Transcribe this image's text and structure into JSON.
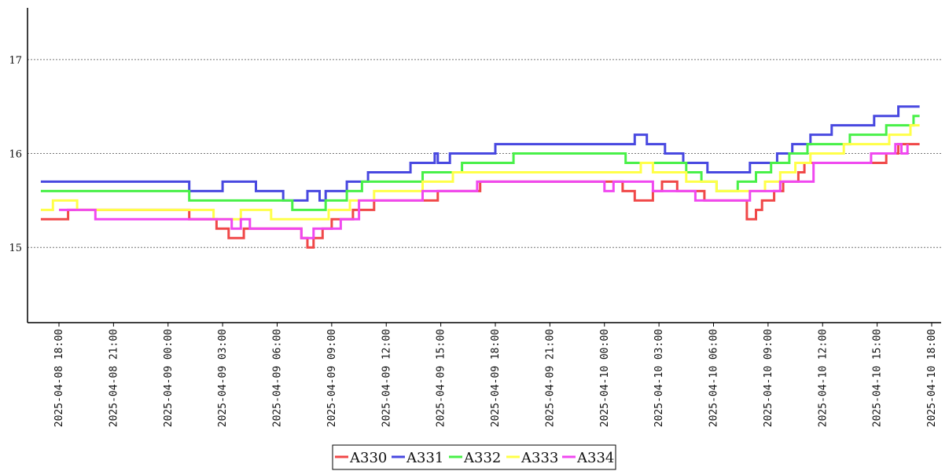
{
  "chart_data": {
    "type": "line",
    "title": "",
    "xlabel": "",
    "ylabel": "",
    "ylim": [
      14.2,
      17.55
    ],
    "xlim": [
      "2025-04-08 17:00",
      "2025-04-10 17:40"
    ],
    "y_ticks": [
      15,
      16,
      17
    ],
    "x_ticks": [
      "2025-04-08 18:00",
      "2025-04-08 21:00",
      "2025-04-09 00:00",
      "2025-04-09 03:00",
      "2025-04-09 06:00",
      "2025-04-09 09:00",
      "2025-04-09 12:00",
      "2025-04-09 15:00",
      "2025-04-09 18:00",
      "2025-04-09 21:00",
      "2025-04-10 00:00",
      "2025-04-10 03:00",
      "2025-04-10 06:00",
      "2025-04-10 09:00",
      "2025-04-10 12:00",
      "2025-04-10 15:00",
      "2025-04-10 18:00"
    ],
    "grid": "horizontal-dotted",
    "legend_position": "bottom-center",
    "step": true,
    "series": [
      {
        "name": "A330",
        "color": "#f04848",
        "points": [
          [
            "2025-04-08 17:00",
            15.3
          ],
          [
            "2025-04-08 18:30",
            15.4
          ],
          [
            "2025-04-09 01:10",
            15.3
          ],
          [
            "2025-04-09 02:40",
            15.2
          ],
          [
            "2025-04-09 03:20",
            15.1
          ],
          [
            "2025-04-09 04:10",
            15.2
          ],
          [
            "2025-04-09 07:20",
            15.1
          ],
          [
            "2025-04-09 07:40",
            15.0
          ],
          [
            "2025-04-09 08:00",
            15.1
          ],
          [
            "2025-04-09 08:30",
            15.2
          ],
          [
            "2025-04-09 09:00",
            15.3
          ],
          [
            "2025-04-09 10:10",
            15.4
          ],
          [
            "2025-04-09 11:20",
            15.5
          ],
          [
            "2025-04-09 14:50",
            15.6
          ],
          [
            "2025-04-09 17:10",
            15.7
          ],
          [
            "2025-04-10 01:00",
            15.6
          ],
          [
            "2025-04-10 01:40",
            15.5
          ],
          [
            "2025-04-10 02:40",
            15.6
          ],
          [
            "2025-04-10 03:10",
            15.7
          ],
          [
            "2025-04-10 04:00",
            15.6
          ],
          [
            "2025-04-10 05:30",
            15.5
          ],
          [
            "2025-04-10 07:50",
            15.3
          ],
          [
            "2025-04-10 08:20",
            15.4
          ],
          [
            "2025-04-10 08:40",
            15.5
          ],
          [
            "2025-04-10 09:20",
            15.6
          ],
          [
            "2025-04-10 09:50",
            15.7
          ],
          [
            "2025-04-10 10:40",
            15.8
          ],
          [
            "2025-04-10 11:00",
            15.9
          ],
          [
            "2025-04-10 15:30",
            16.0
          ],
          [
            "2025-04-10 16:10",
            16.1
          ],
          [
            "2025-04-10 17:20",
            16.1
          ]
        ]
      },
      {
        "name": "A331",
        "color": "#4848e0",
        "points": [
          [
            "2025-04-08 17:00",
            15.7
          ],
          [
            "2025-04-09 01:10",
            15.6
          ],
          [
            "2025-04-09 03:00",
            15.7
          ],
          [
            "2025-04-09 04:50",
            15.6
          ],
          [
            "2025-04-09 06:20",
            15.5
          ],
          [
            "2025-04-09 07:40",
            15.6
          ],
          [
            "2025-04-09 08:20",
            15.5
          ],
          [
            "2025-04-09 08:40",
            15.6
          ],
          [
            "2025-04-09 09:50",
            15.7
          ],
          [
            "2025-04-09 11:00",
            15.8
          ],
          [
            "2025-04-09 13:20",
            15.9
          ],
          [
            "2025-04-09 14:40",
            16.0
          ],
          [
            "2025-04-09 14:50",
            15.9
          ],
          [
            "2025-04-09 15:30",
            16.0
          ],
          [
            "2025-04-09 18:00",
            16.1
          ],
          [
            "2025-04-10 01:40",
            16.2
          ],
          [
            "2025-04-10 02:20",
            16.1
          ],
          [
            "2025-04-10 03:20",
            16.0
          ],
          [
            "2025-04-10 04:20",
            15.9
          ],
          [
            "2025-04-10 05:40",
            15.8
          ],
          [
            "2025-04-10 08:00",
            15.9
          ],
          [
            "2025-04-10 09:30",
            16.0
          ],
          [
            "2025-04-10 10:20",
            16.1
          ],
          [
            "2025-04-10 11:20",
            16.2
          ],
          [
            "2025-04-10 12:30",
            16.3
          ],
          [
            "2025-04-10 14:50",
            16.4
          ],
          [
            "2025-04-10 16:10",
            16.5
          ],
          [
            "2025-04-10 17:20",
            16.5
          ]
        ]
      },
      {
        "name": "A332",
        "color": "#48f048",
        "points": [
          [
            "2025-04-08 17:00",
            15.6
          ],
          [
            "2025-04-09 01:10",
            15.5
          ],
          [
            "2025-04-09 06:50",
            15.4
          ],
          [
            "2025-04-09 08:40",
            15.5
          ],
          [
            "2025-04-09 09:50",
            15.6
          ],
          [
            "2025-04-09 10:40",
            15.7
          ],
          [
            "2025-04-09 14:00",
            15.8
          ],
          [
            "2025-04-09 16:10",
            15.9
          ],
          [
            "2025-04-09 19:00",
            16.0
          ],
          [
            "2025-04-10 01:10",
            15.9
          ],
          [
            "2025-04-10 04:30",
            15.8
          ],
          [
            "2025-04-10 05:20",
            15.7
          ],
          [
            "2025-04-10 06:10",
            15.6
          ],
          [
            "2025-04-10 07:20",
            15.7
          ],
          [
            "2025-04-10 08:20",
            15.8
          ],
          [
            "2025-04-10 09:10",
            15.9
          ],
          [
            "2025-04-10 10:10",
            16.0
          ],
          [
            "2025-04-10 11:10",
            16.1
          ],
          [
            "2025-04-10 13:30",
            16.2
          ],
          [
            "2025-04-10 15:30",
            16.3
          ],
          [
            "2025-04-10 17:00",
            16.4
          ],
          [
            "2025-04-10 17:20",
            16.4
          ]
        ]
      },
      {
        "name": "A333",
        "color": "#ffff48",
        "points": [
          [
            "2025-04-08 17:00",
            15.4
          ],
          [
            "2025-04-08 17:40",
            15.5
          ],
          [
            "2025-04-08 19:00",
            15.4
          ],
          [
            "2025-04-09 00:30",
            15.4
          ],
          [
            "2025-04-09 02:30",
            15.3
          ],
          [
            "2025-04-09 04:00",
            15.4
          ],
          [
            "2025-04-09 05:40",
            15.3
          ],
          [
            "2025-04-09 08:50",
            15.4
          ],
          [
            "2025-04-09 10:00",
            15.5
          ],
          [
            "2025-04-09 11:20",
            15.6
          ],
          [
            "2025-04-09 14:00",
            15.7
          ],
          [
            "2025-04-09 15:40",
            15.8
          ],
          [
            "2025-04-10 02:00",
            15.9
          ],
          [
            "2025-04-10 02:40",
            15.8
          ],
          [
            "2025-04-10 04:30",
            15.7
          ],
          [
            "2025-04-10 06:10",
            15.6
          ],
          [
            "2025-04-10 08:50",
            15.7
          ],
          [
            "2025-04-10 09:40",
            15.8
          ],
          [
            "2025-04-10 10:30",
            15.9
          ],
          [
            "2025-04-10 11:20",
            16.0
          ],
          [
            "2025-04-10 13:10",
            16.1
          ],
          [
            "2025-04-10 15:40",
            16.2
          ],
          [
            "2025-04-10 16:50",
            16.3
          ],
          [
            "2025-04-10 17:20",
            16.3
          ]
        ]
      },
      {
        "name": "A334",
        "color": "#f048f0",
        "points": [
          [
            "2025-04-08 18:00",
            15.4
          ],
          [
            "2025-04-08 20:00",
            15.3
          ],
          [
            "2025-04-09 01:30",
            15.3
          ],
          [
            "2025-04-09 03:30",
            15.2
          ],
          [
            "2025-04-09 04:00",
            15.3
          ],
          [
            "2025-04-09 04:30",
            15.2
          ],
          [
            "2025-04-09 07:20",
            15.1
          ],
          [
            "2025-04-09 08:00",
            15.2
          ],
          [
            "2025-04-09 09:30",
            15.3
          ],
          [
            "2025-04-09 10:30",
            15.5
          ],
          [
            "2025-04-09 14:00",
            15.6
          ],
          [
            "2025-04-09 17:00",
            15.7
          ],
          [
            "2025-04-10 00:00",
            15.6
          ],
          [
            "2025-04-10 00:30",
            15.7
          ],
          [
            "2025-04-10 02:40",
            15.6
          ],
          [
            "2025-04-10 05:00",
            15.5
          ],
          [
            "2025-04-10 08:00",
            15.6
          ],
          [
            "2025-04-10 09:40",
            15.7
          ],
          [
            "2025-04-10 11:30",
            15.9
          ],
          [
            "2025-04-10 14:40",
            16.0
          ],
          [
            "2025-04-10 16:00",
            16.1
          ],
          [
            "2025-04-10 16:20",
            16.0
          ],
          [
            "2025-04-10 16:40",
            16.1
          ]
        ]
      }
    ]
  }
}
